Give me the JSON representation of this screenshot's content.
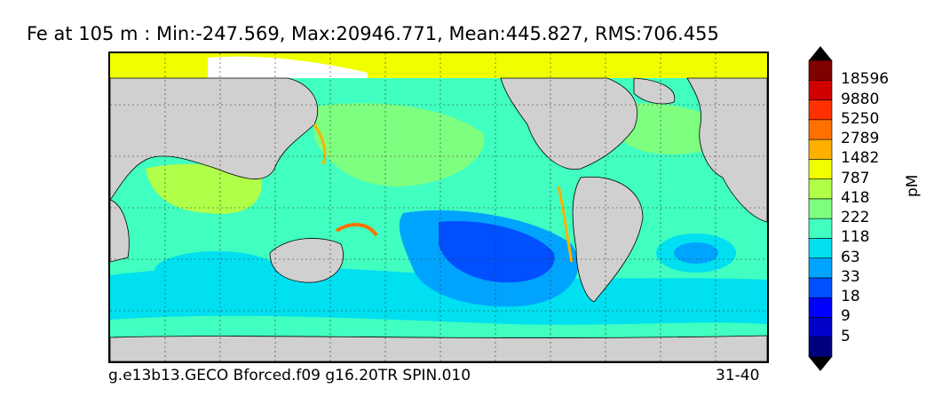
{
  "title": "Fe at 105 m : Min:-247.569, Max:20946.771, Mean:445.827, RMS:706.455",
  "footer": {
    "case_name": "g.e13b13.GECO Bforced.f09 g16.20TR SPIN.010",
    "years": "31-40"
  },
  "chart_data": {
    "type": "heatmap",
    "variable": "Fe",
    "depth": "105 m",
    "stats": {
      "min": -247.569,
      "max": 20946.771,
      "mean": 445.827,
      "rms": 706.455
    },
    "colorbar": {
      "unit": "pM",
      "levels": [
        "5",
        "9",
        "18",
        "33",
        "63",
        "118",
        "222",
        "418",
        "787",
        "1482",
        "2789",
        "5250",
        "9880",
        "18596"
      ],
      "colors": [
        "#00007f",
        "#0000c8",
        "#0000ff",
        "#0050ff",
        "#00a4ff",
        "#00e0f0",
        "#40ffc0",
        "#7fff80",
        "#b0ff48",
        "#f0ff00",
        "#ffb000",
        "#ff7000",
        "#ff3000",
        "#d00000",
        "#800000"
      ],
      "extend": "both"
    },
    "grid": true,
    "land_color": "#d0d0d0"
  }
}
